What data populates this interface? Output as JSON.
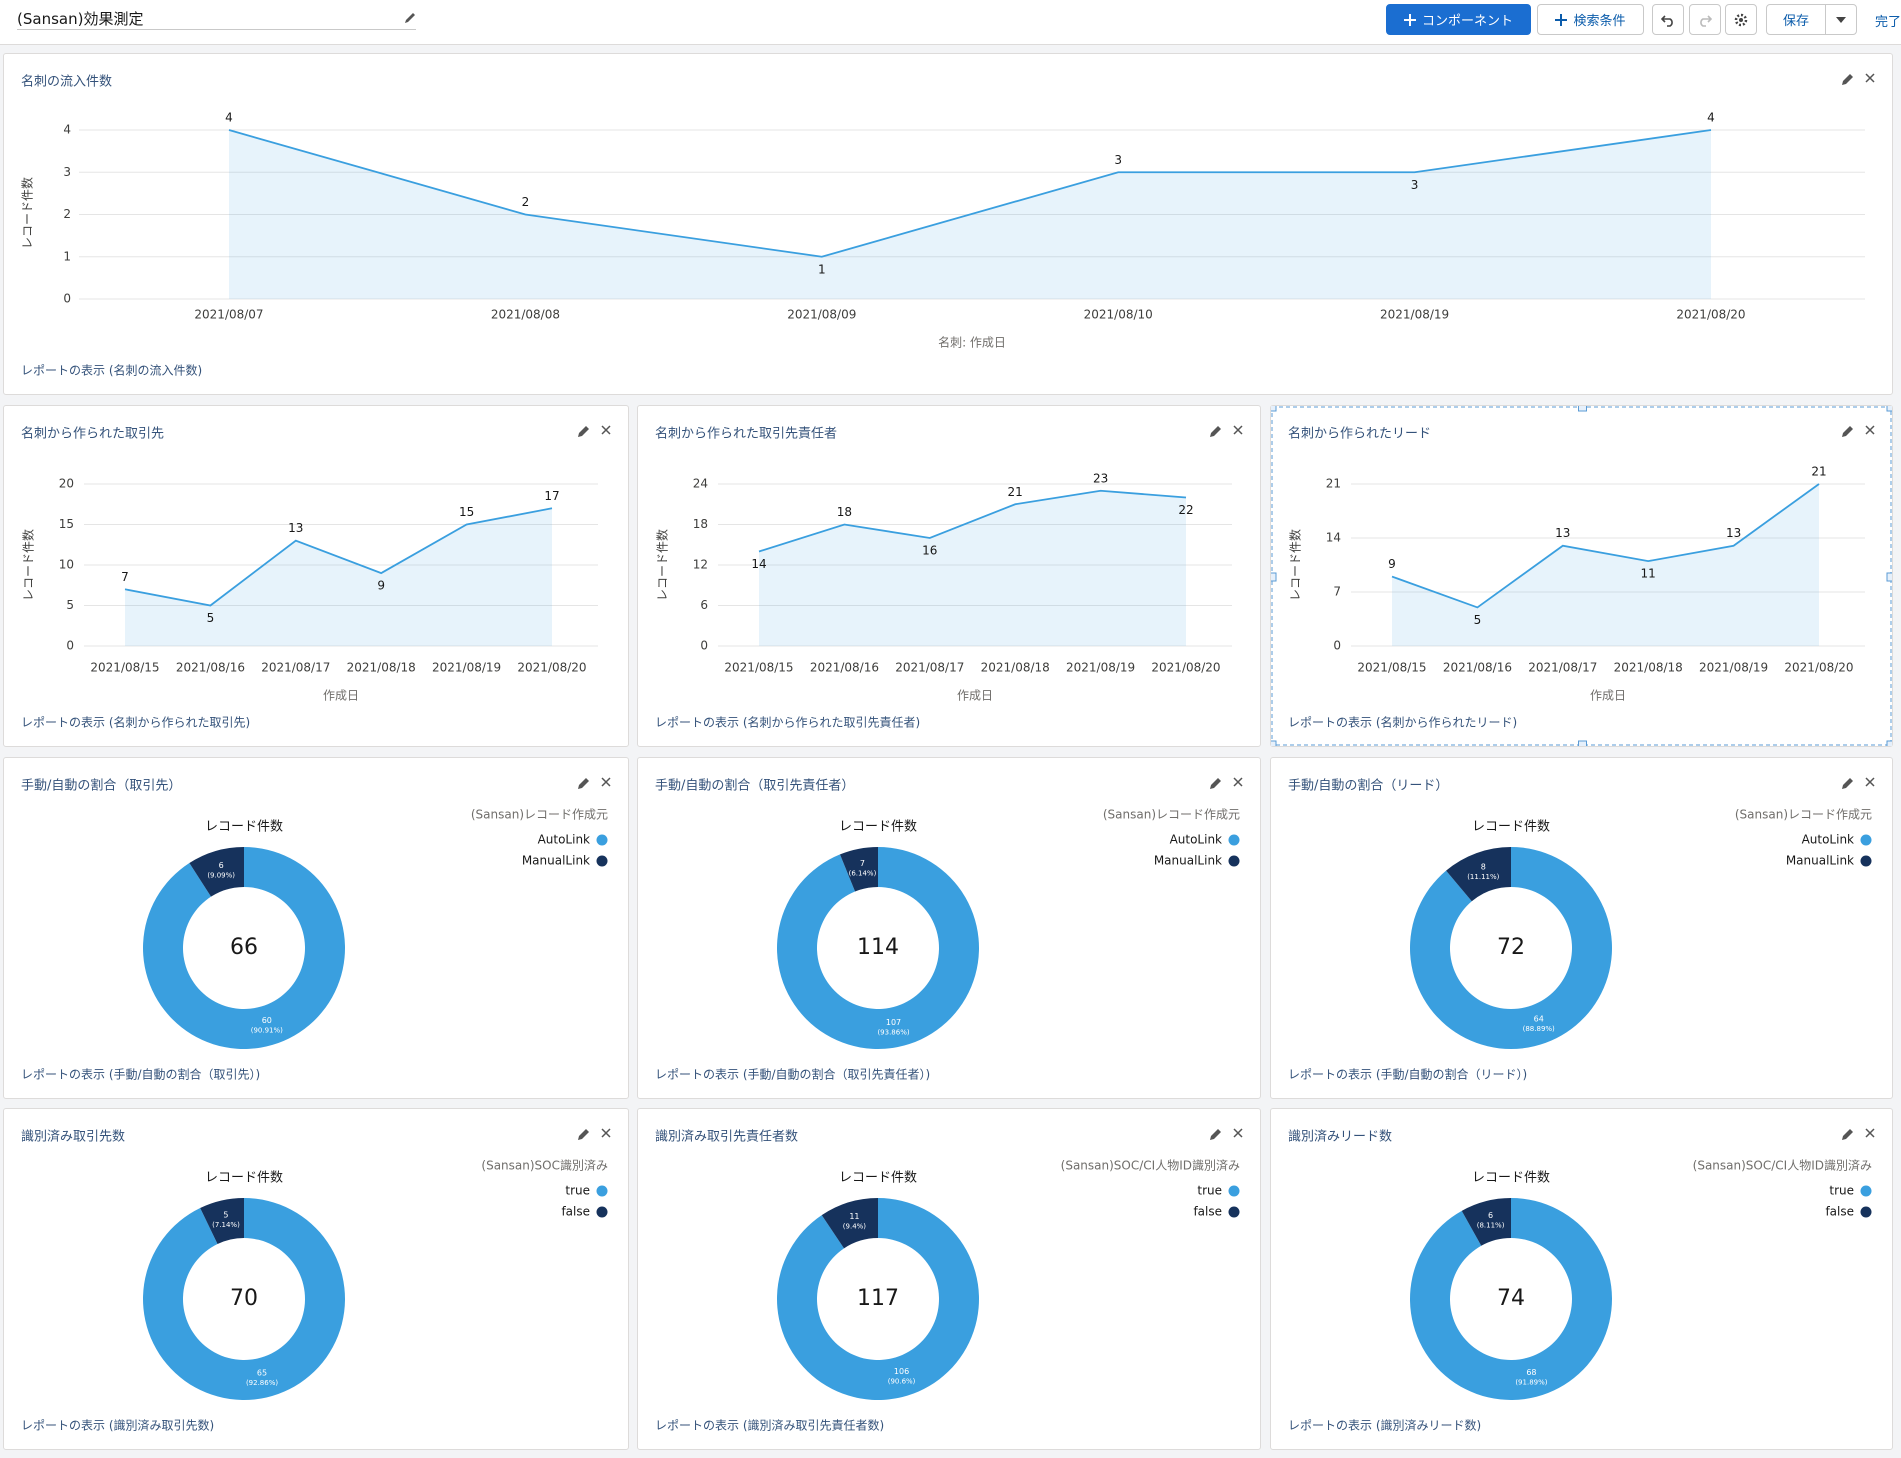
{
  "header": {
    "title": "(Sansan)効果測定",
    "buttons": [
      "コンポーネント",
      "検索条件",
      "保存",
      "完了"
    ]
  },
  "chart_data": [
    {
      "type": "line",
      "title": "名刺の流入件数",
      "y_label": "レコード件数",
      "x_label": "名刺: 作成日",
      "categories": [
        "2021/08/07",
        "2021/08/08",
        "2021/08/09",
        "2021/08/10",
        "2021/08/19",
        "2021/08/20"
      ],
      "values": [
        4,
        2,
        1,
        3,
        3,
        4
      ],
      "ylim": [
        0,
        4
      ],
      "yticks": [
        0,
        1,
        2,
        3,
        4
      ],
      "grid": true,
      "color": "#3a9fdf",
      "report_link": "レポートの表示 (名刺の流入件数)"
    },
    {
      "type": "line",
      "title": "名刺から作られた取引先",
      "y_label": "レコード件数",
      "x_label": "作成日",
      "categories": [
        "2021/08/15",
        "2021/08/16",
        "2021/08/17",
        "2021/08/18",
        "2021/08/19",
        "2021/08/20"
      ],
      "values": [
        7,
        5,
        13,
        9,
        15,
        17
      ],
      "ylim": [
        0,
        20
      ],
      "yticks": [
        0,
        5,
        10,
        15,
        20
      ],
      "grid": true,
      "color": "#3a9fdf",
      "report_link": "レポートの表示 (名刺から作られた取引先)"
    },
    {
      "type": "line",
      "title": "名刺から作られた取引先責任者",
      "y_label": "レコード件数",
      "x_label": "作成日",
      "categories": [
        "2021/08/15",
        "2021/08/16",
        "2021/08/17",
        "2021/08/18",
        "2021/08/19",
        "2021/08/20"
      ],
      "values": [
        14,
        18,
        16,
        21,
        23,
        22
      ],
      "ylim": [
        0,
        24
      ],
      "yticks": [
        0,
        6,
        12,
        18,
        24
      ],
      "grid": true,
      "color": "#3a9fdf",
      "report_link": "レポートの表示 (名刺から作られた取引先責任者)"
    },
    {
      "type": "line",
      "title": "名刺から作られたリード",
      "y_label": "レコード件数",
      "x_label": "作成日",
      "categories": [
        "2021/08/15",
        "2021/08/16",
        "2021/08/17",
        "2021/08/18",
        "2021/08/19",
        "2021/08/20"
      ],
      "values": [
        9,
        5,
        13,
        11,
        13,
        21
      ],
      "ylim": [
        0,
        21
      ],
      "yticks": [
        0,
        7,
        14,
        21
      ],
      "grid": true,
      "color": "#3a9fdf",
      "report_link": "レポートの表示 (名刺から作られたリード)"
    },
    {
      "type": "donut",
      "title": "手動/自動の割合（取引先）",
      "subtitle": "レコード件数",
      "legend_title": "(Sansan)レコード作成元",
      "categories": [
        "AutoLink",
        "ManualLink"
      ],
      "values": [
        60,
        6
      ],
      "percent_labels": [
        "(90.91%)",
        "(9.09%)"
      ],
      "colors": [
        "#3a9fdf",
        "#16325c"
      ],
      "total": 66,
      "report_link": "レポートの表示 (手動/自動の割合（取引先）)"
    },
    {
      "type": "donut",
      "title": "手動/自動の割合（取引先責任者）",
      "subtitle": "レコード件数",
      "legend_title": "(Sansan)レコード作成元",
      "categories": [
        "AutoLink",
        "ManualLink"
      ],
      "values": [
        107,
        7
      ],
      "percent_labels": [
        "(93.86%)",
        "(6.14%)"
      ],
      "colors": [
        "#3a9fdf",
        "#16325c"
      ],
      "total": 114,
      "report_link": "レポートの表示 (手動/自動の割合（取引先責任者）)"
    },
    {
      "type": "donut",
      "title": "手動/自動の割合（リード）",
      "subtitle": "レコード件数",
      "legend_title": "(Sansan)レコード作成元",
      "categories": [
        "AutoLink",
        "ManualLink"
      ],
      "values": [
        64,
        8
      ],
      "percent_labels": [
        "(88.89%)",
        "(11.11%)"
      ],
      "colors": [
        "#3a9fdf",
        "#16325c"
      ],
      "total": 72,
      "report_link": "レポートの表示 (手動/自動の割合（リード）)"
    },
    {
      "type": "donut",
      "title": "識別済み取引先数",
      "subtitle": "レコード件数",
      "legend_title": "(Sansan)SOC識別済み",
      "categories": [
        "true",
        "false"
      ],
      "values": [
        65,
        5
      ],
      "percent_labels": [
        "(92.86%)",
        "(7.14%)"
      ],
      "colors": [
        "#3a9fdf",
        "#16325c"
      ],
      "total": 70,
      "report_link": "レポートの表示 (識別済み取引先数)"
    },
    {
      "type": "donut",
      "title": "識別済み取引先責任者数",
      "subtitle": "レコード件数",
      "legend_title": "(Sansan)SOC/CI人物ID識別済み",
      "categories": [
        "true",
        "false"
      ],
      "values": [
        106,
        11
      ],
      "percent_labels": [
        "(90.6%)",
        "(9.4%)"
      ],
      "colors": [
        "#3a9fdf",
        "#16325c"
      ],
      "total": 117,
      "report_link": "レポートの表示 (識別済み取引先責任者数)"
    },
    {
      "type": "donut",
      "title": "識別済みリード数",
      "subtitle": "レコード件数",
      "legend_title": "(Sansan)SOC/CI人物ID識別済み",
      "categories": [
        "true",
        "false"
      ],
      "values": [
        68,
        6
      ],
      "percent_labels": [
        "(91.89%)",
        "(8.11%)"
      ],
      "colors": [
        "#3a9fdf",
        "#16325c"
      ],
      "total": 74,
      "report_link": "レポートの表示 (識別済みリード数)"
    }
  ]
}
